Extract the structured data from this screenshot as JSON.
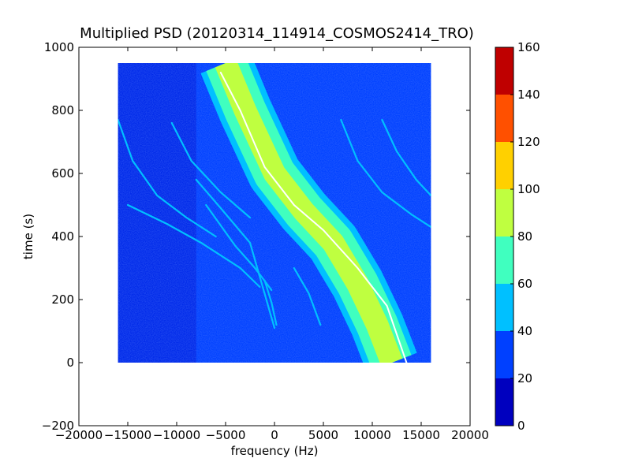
{
  "chart_data": {
    "type": "heatmap",
    "title": "Multiplied PSD (20120314_114914_COSMOS2414_TRO)",
    "xlabel": "frequency (Hz)",
    "ylabel": "time (s)",
    "xlim": [
      -20000,
      20000
    ],
    "ylim": [
      -200,
      1000
    ],
    "x_ticks": [
      "−20000",
      "−15000",
      "−10000",
      "−5000",
      "0",
      "5000",
      "10000",
      "15000",
      "20000"
    ],
    "y_ticks": [
      "−200",
      "0",
      "200",
      "400",
      "600",
      "800",
      "1000"
    ],
    "data_extent": {
      "x": [
        -16000,
        16000
      ],
      "y": [
        0,
        950
      ]
    },
    "colorbar": {
      "range": [
        0,
        160
      ],
      "ticks": [
        "0",
        "20",
        "40",
        "60",
        "80",
        "100",
        "120",
        "140",
        "160"
      ],
      "levels": [
        {
          "min": 0,
          "max": 20,
          "color": "#0000bf"
        },
        {
          "min": 20,
          "max": 40,
          "color": "#0040ff"
        },
        {
          "min": 40,
          "max": 60,
          "color": "#00c0ff"
        },
        {
          "min": 60,
          "max": 80,
          "color": "#40ffbf"
        },
        {
          "min": 80,
          "max": 100,
          "color": "#bfff40"
        },
        {
          "min": 100,
          "max": 120,
          "color": "#ffd000"
        },
        {
          "min": 120,
          "max": 140,
          "color": "#ff5000"
        },
        {
          "min": 140,
          "max": 160,
          "color": "#bf0000"
        }
      ]
    },
    "features": {
      "main_track": {
        "description_kind": "doppler-curve",
        "points": [
          [
            -5000,
            950
          ],
          [
            -3000,
            800
          ],
          [
            0,
            600
          ],
          [
            3000,
            480
          ],
          [
            6000,
            380
          ],
          [
            8500,
            250
          ],
          [
            10500,
            120
          ],
          [
            12000,
            0
          ]
        ],
        "band_width_hz": 5500,
        "peak_level": 90
      },
      "ridge": {
        "points": [
          [
            -5500,
            920
          ],
          [
            -3500,
            800
          ],
          [
            -1000,
            620
          ],
          [
            2000,
            500
          ],
          [
            5000,
            420
          ],
          [
            8500,
            300
          ],
          [
            11500,
            180
          ],
          [
            13500,
            0
          ]
        ],
        "level": 160
      },
      "secondary_tracks": [
        {
          "points": [
            [
              -16000,
              770
            ],
            [
              -14500,
              640
            ],
            [
              -12000,
              530
            ],
            [
              -9000,
              460
            ],
            [
              -6000,
              400
            ]
          ],
          "level": 50
        },
        {
          "points": [
            [
              -10500,
              760
            ],
            [
              -8500,
              640
            ],
            [
              -5500,
              540
            ],
            [
              -2500,
              460
            ]
          ],
          "level": 50
        },
        {
          "points": [
            [
              -8000,
              580
            ],
            [
              -5500,
              490
            ],
            [
              -2500,
              380
            ],
            [
              0,
              110
            ]
          ],
          "level": 45
        },
        {
          "points": [
            [
              -15000,
              500
            ],
            [
              -11000,
              440
            ],
            [
              -7500,
              380
            ],
            [
              -3500,
              300
            ],
            [
              -1500,
              240
            ]
          ],
          "level": 45
        },
        {
          "points": [
            [
              -7000,
              500
            ],
            [
              -4000,
              370
            ],
            [
              -2000,
              300
            ],
            [
              -300,
              230
            ]
          ],
          "level": 40
        },
        {
          "points": [
            [
              2000,
              300
            ],
            [
              3500,
              220
            ],
            [
              4700,
              120
            ]
          ],
          "level": 45
        },
        {
          "points": [
            [
              -1000,
              260
            ],
            [
              -300,
              190
            ],
            [
              200,
              120
            ]
          ],
          "level": 45
        },
        {
          "points": [
            [
              6800,
              770
            ],
            [
              8500,
              640
            ],
            [
              11000,
              540
            ],
            [
              14000,
              470
            ],
            [
              16000,
              430
            ]
          ],
          "level": 50
        },
        {
          "points": [
            [
              11000,
              770
            ],
            [
              12500,
              670
            ],
            [
              14500,
              580
            ],
            [
              16000,
              530
            ]
          ],
          "level": 50
        }
      ],
      "dark_region": {
        "x": [
          -16000,
          -8000
        ],
        "level": 15
      },
      "background_level": 28
    }
  }
}
